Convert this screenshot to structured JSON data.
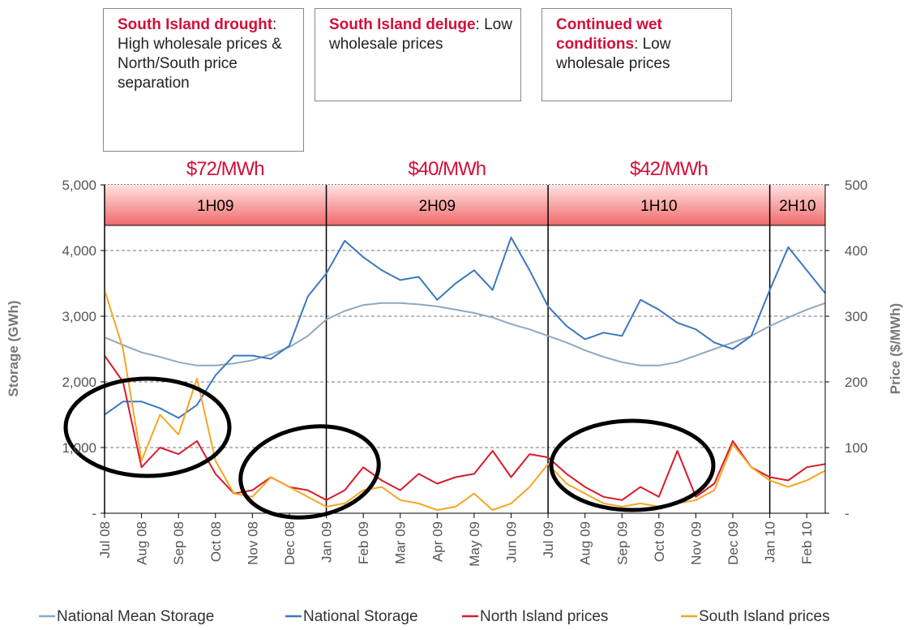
{
  "chart_data": {
    "type": "line",
    "y_label": "Storage (GWh)",
    "y2_label": "Price ($/MWh)",
    "annotations": [
      {
        "bold": "South Island drought",
        "text": ": High wholesale prices & North/South price separation"
      },
      {
        "bold": "South Island deluge",
        "text": ": Low wholesale prices"
      },
      {
        "bold": "Continued wet conditions",
        "text": ": Low wholesale prices"
      }
    ],
    "periods": [
      {
        "label": "1H09",
        "start": 0,
        "price": "$72/MWh"
      },
      {
        "label": "2H09",
        "start": 6,
        "price": "$40/MWh"
      },
      {
        "label": "1H10",
        "start": 12,
        "price": "$42/MWh"
      },
      {
        "label": "2H10",
        "start": 18
      }
    ],
    "x": [
      0,
      0.5,
      1,
      1.5,
      2,
      2.5,
      3,
      3.5,
      4,
      4.5,
      5,
      5.5,
      6,
      6.5,
      7,
      7.5,
      8,
      8.5,
      9,
      9.5,
      10,
      10.5,
      11,
      11.5,
      12,
      12.5,
      13,
      13.5,
      14,
      14.5,
      15,
      15.5,
      16,
      16.5,
      17,
      17.5,
      18,
      18.5,
      19,
      19.5
    ],
    "xlim": [
      0,
      19.5
    ],
    "xticks": [
      {
        "value": 0,
        "label": "Jul 08"
      },
      {
        "value": 1,
        "label": "Aug 08"
      },
      {
        "value": 2,
        "label": "Sep 08"
      },
      {
        "value": 3,
        "label": "Oct 08"
      },
      {
        "value": 4,
        "label": "Nov 08"
      },
      {
        "value": 5,
        "label": "Dec 08"
      },
      {
        "value": 6,
        "label": "Jan 09"
      },
      {
        "value": 7,
        "label": "Feb 09"
      },
      {
        "value": 8,
        "label": "Mar 09"
      },
      {
        "value": 9,
        "label": "Apr 09"
      },
      {
        "value": 10,
        "label": "May 09"
      },
      {
        "value": 11,
        "label": "Jun 09"
      },
      {
        "value": 12,
        "label": "Jul 09"
      },
      {
        "value": 13,
        "label": "Aug 09"
      },
      {
        "value": 14,
        "label": "Sep 09"
      },
      {
        "value": 15,
        "label": "Oct 09"
      },
      {
        "value": 16,
        "label": "Nov 09"
      },
      {
        "value": 17,
        "label": "Dec 09"
      },
      {
        "value": 18,
        "label": "Jan 10"
      },
      {
        "value": 19,
        "label": "Feb 10"
      }
    ],
    "ylim": [
      0,
      5000
    ],
    "yticks": [
      {
        "value": 0,
        "label": "-"
      },
      {
        "value": 1000,
        "label": "1,000"
      },
      {
        "value": 2000,
        "label": "2,000"
      },
      {
        "value": 3000,
        "label": "3,000"
      },
      {
        "value": 4000,
        "label": "4,000"
      },
      {
        "value": 5000,
        "label": "5,000"
      }
    ],
    "y2lim": [
      0,
      500
    ],
    "y2ticks": [
      {
        "value": 0,
        "label": "-"
      },
      100,
      200,
      300,
      400,
      500
    ],
    "grid": true,
    "legend": "bottom",
    "series": [
      {
        "name": "National Mean Storage",
        "color": "#8fa9bf",
        "values": [
          2680,
          2560,
          2450,
          2380,
          2300,
          2250,
          2250,
          2280,
          2330,
          2420,
          2530,
          2700,
          2950,
          3080,
          3170,
          3200,
          3200,
          3180,
          3150,
          3100,
          3050,
          2980,
          2880,
          2800,
          2700,
          2600,
          2480,
          2380,
          2300,
          2250,
          2250,
          2300,
          2400,
          2500,
          2600,
          2700,
          2850,
          2980,
          3100,
          3200
        ]
      },
      {
        "name": "National Storage",
        "color": "#3a78c0",
        "values": [
          1500,
          1700,
          1700,
          1600,
          1450,
          1650,
          2100,
          2400,
          2400,
          2350,
          2550,
          3300,
          3650,
          4150,
          3900,
          3700,
          3550,
          3600,
          3250,
          3500,
          3700,
          3400,
          4200,
          3700,
          3150,
          2850,
          2650,
          2750,
          2700,
          3250,
          3100,
          2900,
          2800,
          2600,
          2500,
          2700,
          3400,
          4050,
          3700,
          3350
        ]
      },
      {
        "name": "North Island prices",
        "color": "#d81b2a",
        "axis": "y2",
        "values": [
          240,
          200,
          70,
          100,
          90,
          110,
          60,
          30,
          35,
          55,
          40,
          35,
          20,
          35,
          70,
          50,
          35,
          60,
          45,
          55,
          60,
          95,
          55,
          90,
          85,
          60,
          40,
          25,
          20,
          40,
          25,
          95,
          25,
          45,
          110,
          70,
          55,
          50,
          70,
          75
        ]
      },
      {
        "name": "South Island prices",
        "color": "#f5a623",
        "axis": "y2",
        "values": [
          340,
          250,
          80,
          150,
          120,
          205,
          80,
          30,
          25,
          55,
          40,
          25,
          10,
          15,
          35,
          40,
          20,
          15,
          5,
          10,
          30,
          5,
          15,
          40,
          75,
          45,
          30,
          15,
          10,
          15,
          10,
          15,
          20,
          35,
          105,
          70,
          50,
          40,
          50,
          65
        ]
      }
    ]
  }
}
